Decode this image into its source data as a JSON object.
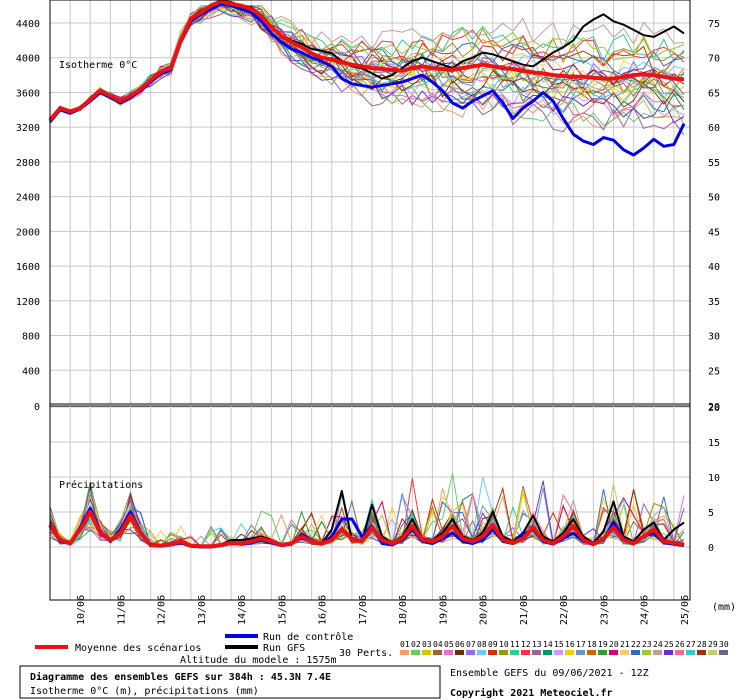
{
  "chart_data": [
    {
      "type": "line",
      "panel": "isotherm",
      "annotation": "Isotherme 0°C",
      "ylim": [
        0,
        4600
      ],
      "y_ticks": [
        4400,
        4000,
        3600,
        3200,
        2800,
        2400,
        2000,
        1600,
        1200,
        800,
        400,
        0
      ],
      "y_right_ticks": [
        75,
        70,
        65,
        60,
        55,
        50,
        45,
        40,
        35,
        30,
        25,
        20
      ],
      "x_ticks": [
        "10/06",
        "11/06",
        "12/06",
        "13/06",
        "14/06",
        "15/06",
        "16/06",
        "17/06",
        "18/06",
        "19/06",
        "20/06",
        "21/06",
        "22/06",
        "23/06",
        "24/06",
        "25/06"
      ],
      "x": [
        0,
        0.25,
        0.5,
        0.75,
        1,
        1.25,
        1.5,
        1.75,
        2,
        2.25,
        2.5,
        2.75,
        3,
        3.25,
        3.5,
        3.75,
        4,
        4.25,
        4.5,
        4.75,
        5,
        5.25,
        5.5,
        5.75,
        6,
        6.25,
        6.5,
        6.75,
        7,
        7.25,
        7.5,
        7.75,
        8,
        8.25,
        8.5,
        8.75,
        9,
        9.25,
        9.5,
        9.75,
        10,
        10.25,
        10.5,
        10.75,
        11,
        11.25,
        11.5,
        11.75,
        12,
        12.25,
        12.5,
        12.75,
        13,
        13.25,
        13.5,
        13.75,
        14,
        14.25,
        14.5,
        14.75,
        15,
        15.25,
        15.5,
        15.75
      ],
      "series": [
        {
          "name": "Moyenne des scénarios",
          "role": "mean",
          "color": "#ee1111",
          "values": [
            3280,
            3420,
            3380,
            3420,
            3520,
            3620,
            3560,
            3500,
            3560,
            3640,
            3740,
            3840,
            3880,
            4200,
            4450,
            4520,
            4600,
            4650,
            4620,
            4600,
            4560,
            4480,
            4350,
            4250,
            4180,
            4120,
            4050,
            4000,
            3980,
            3950,
            3920,
            3900,
            3880,
            3870,
            3860,
            3850,
            3880,
            3900,
            3880,
            3870,
            3860,
            3880,
            3900,
            3920,
            3900,
            3880,
            3870,
            3850,
            3830,
            3820,
            3800,
            3790,
            3780,
            3780,
            3770,
            3760,
            3760,
            3780,
            3800,
            3810,
            3800,
            3780,
            3760,
            3750
          ]
        },
        {
          "name": "Run de contrôle",
          "role": "control",
          "color": "#0000ee",
          "values": [
            3260,
            3400,
            3360,
            3410,
            3500,
            3600,
            3540,
            3480,
            3540,
            3620,
            3720,
            3820,
            3860,
            4180,
            4420,
            4500,
            4560,
            4620,
            4600,
            4560,
            4520,
            4420,
            4280,
            4180,
            4100,
            4060,
            4000,
            3960,
            3900,
            3760,
            3700,
            3680,
            3660,
            3680,
            3700,
            3720,
            3760,
            3800,
            3720,
            3620,
            3480,
            3420,
            3500,
            3560,
            3620,
            3480,
            3300,
            3420,
            3500,
            3600,
            3500,
            3300,
            3120,
            3040,
            3000,
            3080,
            3050,
            2940,
            2880,
            2960,
            3060,
            2980,
            3000,
            3240
          ]
        },
        {
          "name": "Run GFS",
          "role": "gfs",
          "color": "#000000",
          "values": [
            3280,
            3430,
            3390,
            3430,
            3530,
            3630,
            3570,
            3500,
            3570,
            3650,
            3750,
            3850,
            3900,
            4220,
            4460,
            4540,
            4600,
            4660,
            4640,
            4600,
            4580,
            4480,
            4360,
            4260,
            4200,
            4160,
            4100,
            4080,
            4050,
            3960,
            3900,
            3880,
            3820,
            3760,
            3800,
            3880,
            3960,
            4000,
            3960,
            3920,
            3880,
            3960,
            4000,
            4060,
            4040,
            4000,
            3960,
            3920,
            3900,
            3980,
            4060,
            4120,
            4200,
            4360,
            4440,
            4500,
            4420,
            4380,
            4320,
            4260,
            4240,
            4300,
            4360,
            4280
          ]
        }
      ],
      "perturbation_spread": {
        "center_offsets": [
          -420,
          -300,
          -210,
          -140,
          -80,
          -30,
          20,
          70,
          130,
          190,
          260,
          340
        ],
        "note": "30 members plotted around the mean"
      }
    },
    {
      "type": "line",
      "panel": "precipitation",
      "annotation": "Précipitations",
      "ylim": [
        0,
        20
      ],
      "y_right_ticks": [
        20,
        15,
        10,
        5,
        0
      ],
      "unit": "(mm)",
      "x_ticks": [
        "10/06",
        "11/06",
        "12/06",
        "13/06",
        "14/06",
        "15/06",
        "16/06",
        "17/06",
        "18/06",
        "19/06",
        "20/06",
        "21/06",
        "22/06",
        "23/06",
        "24/06",
        "25/06"
      ],
      "series": [
        {
          "name": "Moyenne des scénarios",
          "role": "mean",
          "color": "#ee1111",
          "values": [
            3.2,
            1.0,
            0.5,
            2.5,
            5.0,
            2.0,
            1.0,
            2.0,
            4.5,
            2.0,
            0.3,
            0.2,
            0.4,
            0.8,
            0.2,
            0.1,
            0.1,
            0.3,
            0.6,
            0.5,
            0.8,
            1.2,
            0.8,
            0.3,
            0.5,
            1.5,
            0.8,
            0.5,
            1.0,
            2.5,
            1.2,
            0.8,
            2.8,
            1.0,
            0.5,
            1.2,
            3.0,
            1.0,
            0.8,
            1.5,
            3.0,
            1.2,
            0.8,
            1.5,
            3.2,
            1.0,
            0.6,
            1.2,
            2.8,
            1.0,
            0.5,
            1.5,
            3.0,
            1.0,
            0.4,
            1.2,
            2.8,
            1.0,
            0.5,
            1.5,
            2.5,
            0.8,
            0.6,
            0.3
          ]
        },
        {
          "name": "Run de contrôle",
          "role": "control",
          "color": "#0000ee",
          "values": [
            3.0,
            0.8,
            0.5,
            2.8,
            5.5,
            2.2,
            0.8,
            2.5,
            5.0,
            2.2,
            0.2,
            0.1,
            0.3,
            0.6,
            0.1,
            0.0,
            0.0,
            0.2,
            0.5,
            0.4,
            0.6,
            1.0,
            0.6,
            0.2,
            0.4,
            1.8,
            1.0,
            0.4,
            1.5,
            4.0,
            4.0,
            1.5,
            3.0,
            0.5,
            0.3,
            1.0,
            2.5,
            0.8,
            0.5,
            1.2,
            2.0,
            0.8,
            0.5,
            1.0,
            2.5,
            0.8,
            0.5,
            1.8,
            2.5,
            0.8,
            0.4,
            1.2,
            2.0,
            0.8,
            0.5,
            1.0,
            3.5,
            1.2,
            0.6,
            1.5,
            2.0,
            0.6,
            0.4,
            0.2
          ]
        },
        {
          "name": "Run GFS",
          "role": "gfs",
          "color": "#000000",
          "values": [
            3.5,
            1.2,
            0.6,
            2.6,
            5.2,
            2.1,
            1.1,
            2.2,
            4.8,
            2.1,
            0.4,
            0.2,
            0.5,
            0.9,
            0.3,
            0.1,
            0.1,
            0.4,
            1.0,
            1.0,
            1.2,
            1.5,
            1.0,
            0.4,
            0.6,
            1.2,
            0.7,
            0.5,
            2.5,
            8.0,
            1.0,
            0.8,
            6.0,
            1.5,
            0.6,
            1.5,
            4.0,
            1.2,
            1.0,
            2.0,
            4.0,
            1.5,
            1.0,
            2.0,
            5.0,
            1.5,
            0.8,
            2.0,
            4.5,
            1.5,
            0.8,
            2.0,
            4.0,
            1.5,
            0.6,
            2.2,
            6.5,
            1.5,
            0.8,
            2.5,
            3.5,
            1.0,
            2.5,
            3.5
          ]
        }
      ]
    }
  ],
  "legend": {
    "mean_label": "Moyenne des scénarios",
    "control_label": "Run de contrôle",
    "gfs_label": "Run GFS",
    "perts_label": "30 Perts.",
    "perturbation_numbers": [
      "01",
      "02",
      "03",
      "04",
      "05",
      "06",
      "07",
      "08",
      "09",
      "10",
      "11",
      "12",
      "13",
      "14",
      "15",
      "16",
      "17",
      "18",
      "19",
      "20",
      "21",
      "22",
      "23",
      "24",
      "25",
      "26",
      "27",
      "28",
      "29",
      "30"
    ],
    "perturbation_colors": [
      "#ff9966",
      "#66cc66",
      "#cccc00",
      "#996633",
      "#ff66cc",
      "#663300",
      "#9966ff",
      "#66ccff",
      "#cc3300",
      "#999900",
      "#33cc99",
      "#ff3333",
      "#996699",
      "#009966",
      "#cc99ff",
      "#ffcc00",
      "#6699cc",
      "#cc6600",
      "#339933",
      "#cc0066",
      "#ffcc66",
      "#3366cc",
      "#99cc33",
      "#cc9999",
      "#6633cc",
      "#ff6699",
      "#33cccc",
      "#993300",
      "#cccc66",
      "#666699"
    ]
  },
  "footer": {
    "altitude": "Altitude du modele : 1575m",
    "title": "Diagramme des ensembles GEFS sur 384h : 45.3N 7.4E",
    "subtitle": "Isotherme 0°C (m), précipitations (mm)",
    "ensemble": "Ensemble GEFS du 09/06/2021 - 12Z",
    "copyright": "Copyright 2021 Meteociel.fr"
  }
}
